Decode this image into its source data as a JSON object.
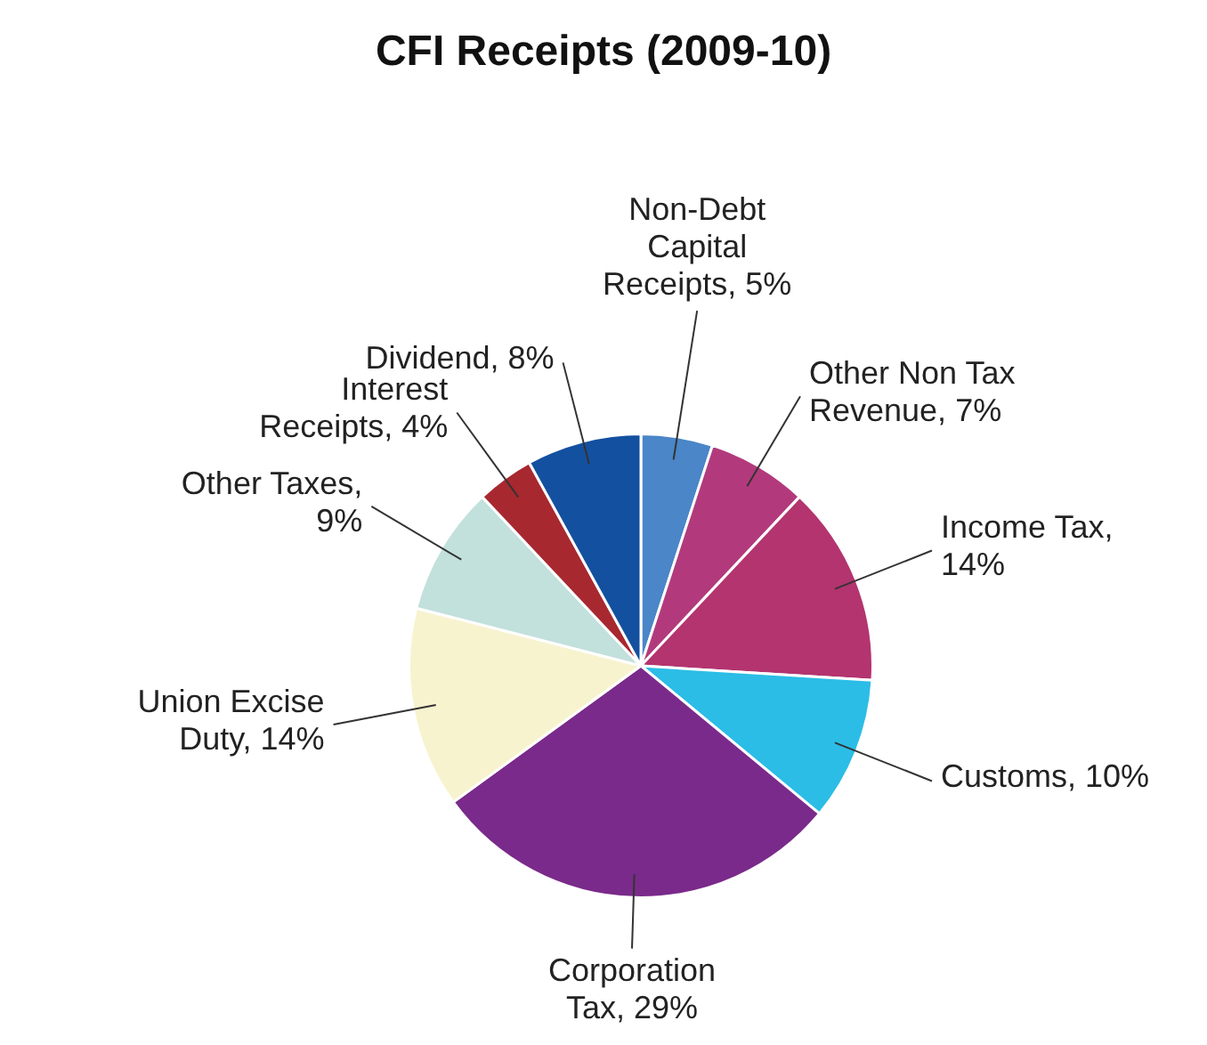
{
  "chart_data": {
    "type": "pie",
    "title": "CFI Receipts (2009-10)",
    "categories": [
      "Non-Debt Capital Receipts, 5%",
      "Other Non Tax Revenue, 7%",
      "Income Tax, 14%",
      "Customs, 10%",
      "Corporation Tax, 29%",
      "Union Excise Duty, 14%",
      "Other Taxes, 9%",
      "Interest Receipts, 4%",
      "Dividend, 8%"
    ],
    "values": [
      5,
      7,
      14,
      10,
      29,
      14,
      9,
      4,
      8
    ],
    "colors": [
      "#4a86c8",
      "#b23a7c",
      "#b3346f",
      "#2bbde6",
      "#7a2a8a",
      "#f7f3cf",
      "#c2e0dc",
      "#a82830",
      "#1450a0"
    ],
    "legend": false
  }
}
